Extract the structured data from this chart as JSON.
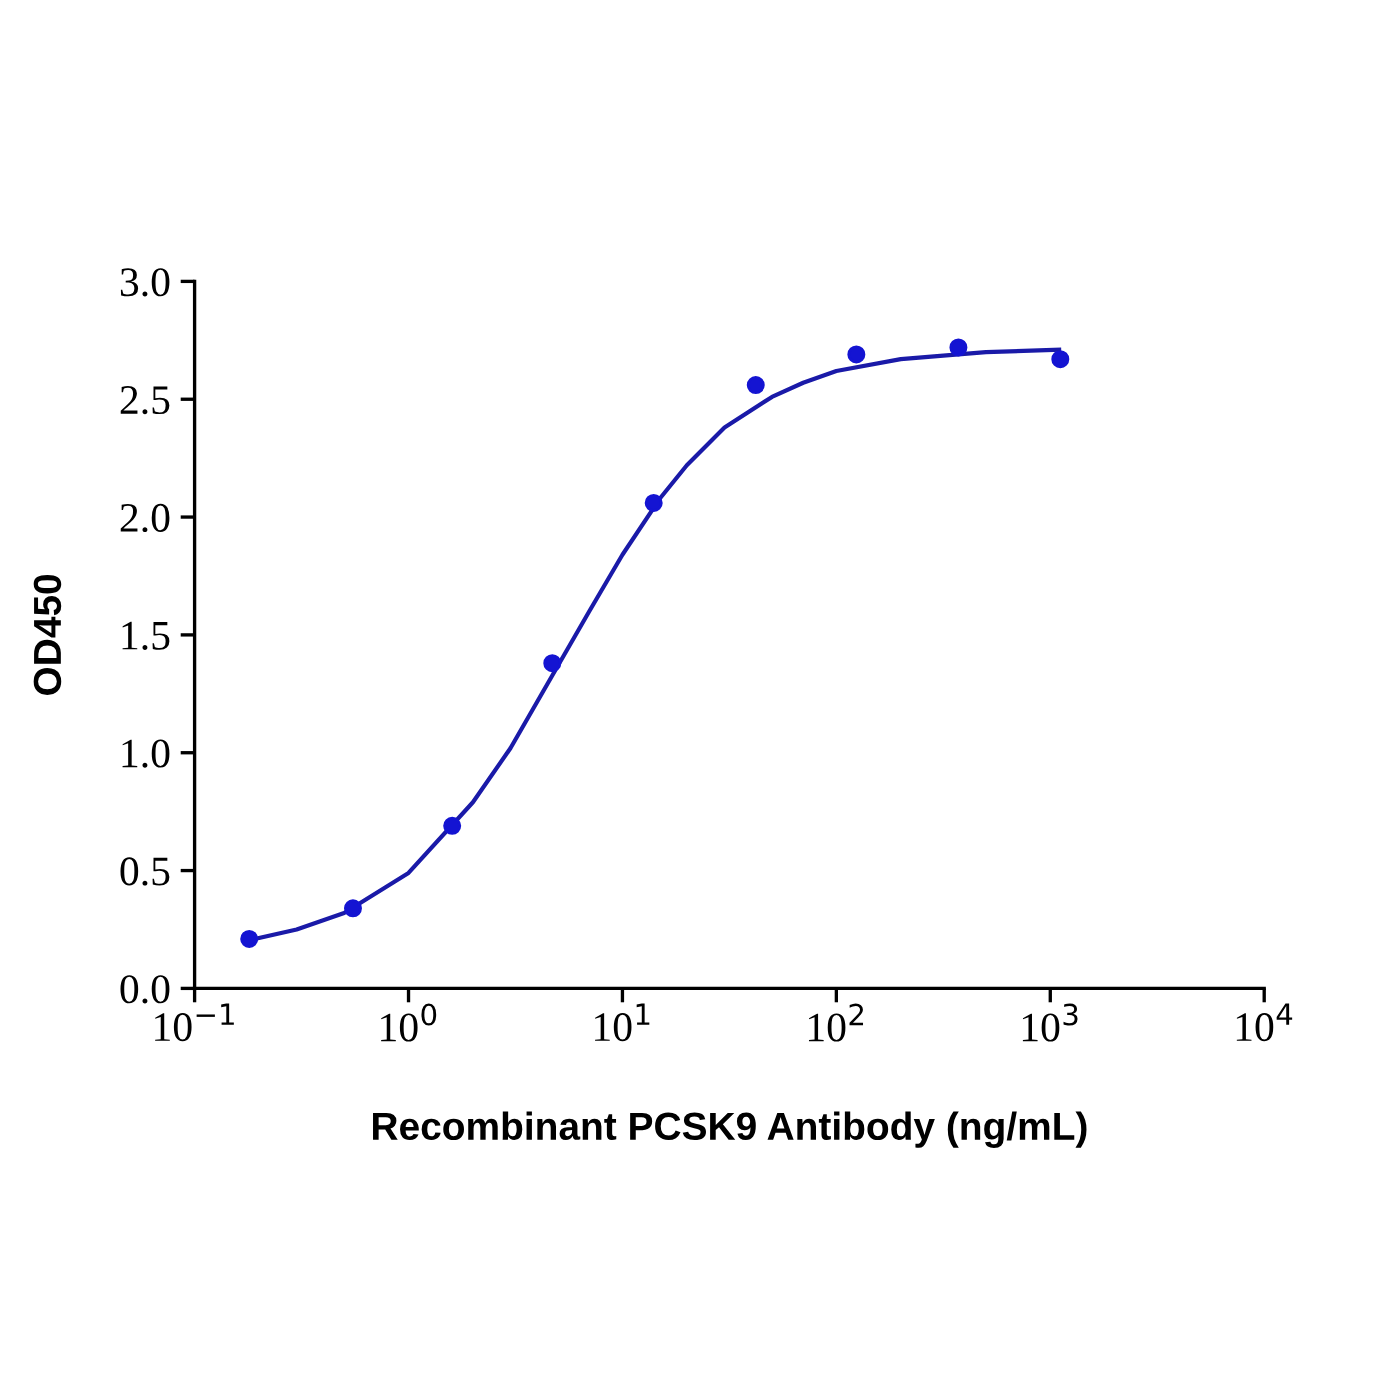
{
  "chart_data": {
    "type": "scatter",
    "xlabel": "Recombinant PCSK9 Antibody (ng/mL)",
    "ylabel": "OD450",
    "log": "x",
    "grid": false,
    "legend": false,
    "marker": "circle",
    "xlim": [
      0.1,
      10000
    ],
    "xticks": [
      {
        "value": 0.1,
        "label": "10$^{−1}$"
      },
      {
        "value": 1,
        "label": "10$^{0}$"
      },
      {
        "value": 10,
        "label": "10$^{1}$"
      },
      {
        "value": 100,
        "label": "10$^{2}$"
      },
      {
        "value": 1000,
        "label": "10$^{3}$"
      },
      {
        "value": 10000,
        "label": "10$^{4}$"
      }
    ],
    "ylim": [
      0,
      3
    ],
    "yticks": [
      {
        "value": 0,
        "label": "0.0"
      },
      {
        "value": 0.5,
        "label": "0.5"
      },
      {
        "value": 1,
        "label": "1.0"
      },
      {
        "value": 1.5,
        "label": "1.5"
      },
      {
        "value": 2,
        "label": "2.0"
      },
      {
        "value": 2.5,
        "label": "2.5"
      },
      {
        "value": 3,
        "label": "3.0"
      }
    ],
    "series": [
      {
        "type": "line",
        "color": "#1a1aa8",
        "marker": "none",
        "line_style": "solid",
        "x": [
          0.17,
          0.3,
          0.5,
          1,
          2,
          3,
          5,
          7,
          10,
          15,
          20,
          30,
          50,
          70,
          100,
          200,
          500,
          1100
        ],
        "values": [
          0.2,
          0.25,
          0.32,
          0.49,
          0.79,
          1.02,
          1.37,
          1.6,
          1.84,
          2.08,
          2.22,
          2.38,
          2.51,
          2.57,
          2.62,
          2.67,
          2.7,
          2.71
        ]
      },
      {
        "color": "#1414d2",
        "x": [
          0.18,
          0.55,
          1.6,
          4.7,
          14,
          42,
          124,
          372,
          1114
        ],
        "values": [
          0.21,
          0.34,
          0.69,
          1.38,
          2.06,
          2.56,
          2.69,
          2.72,
          2.67
        ]
      }
    ]
  }
}
